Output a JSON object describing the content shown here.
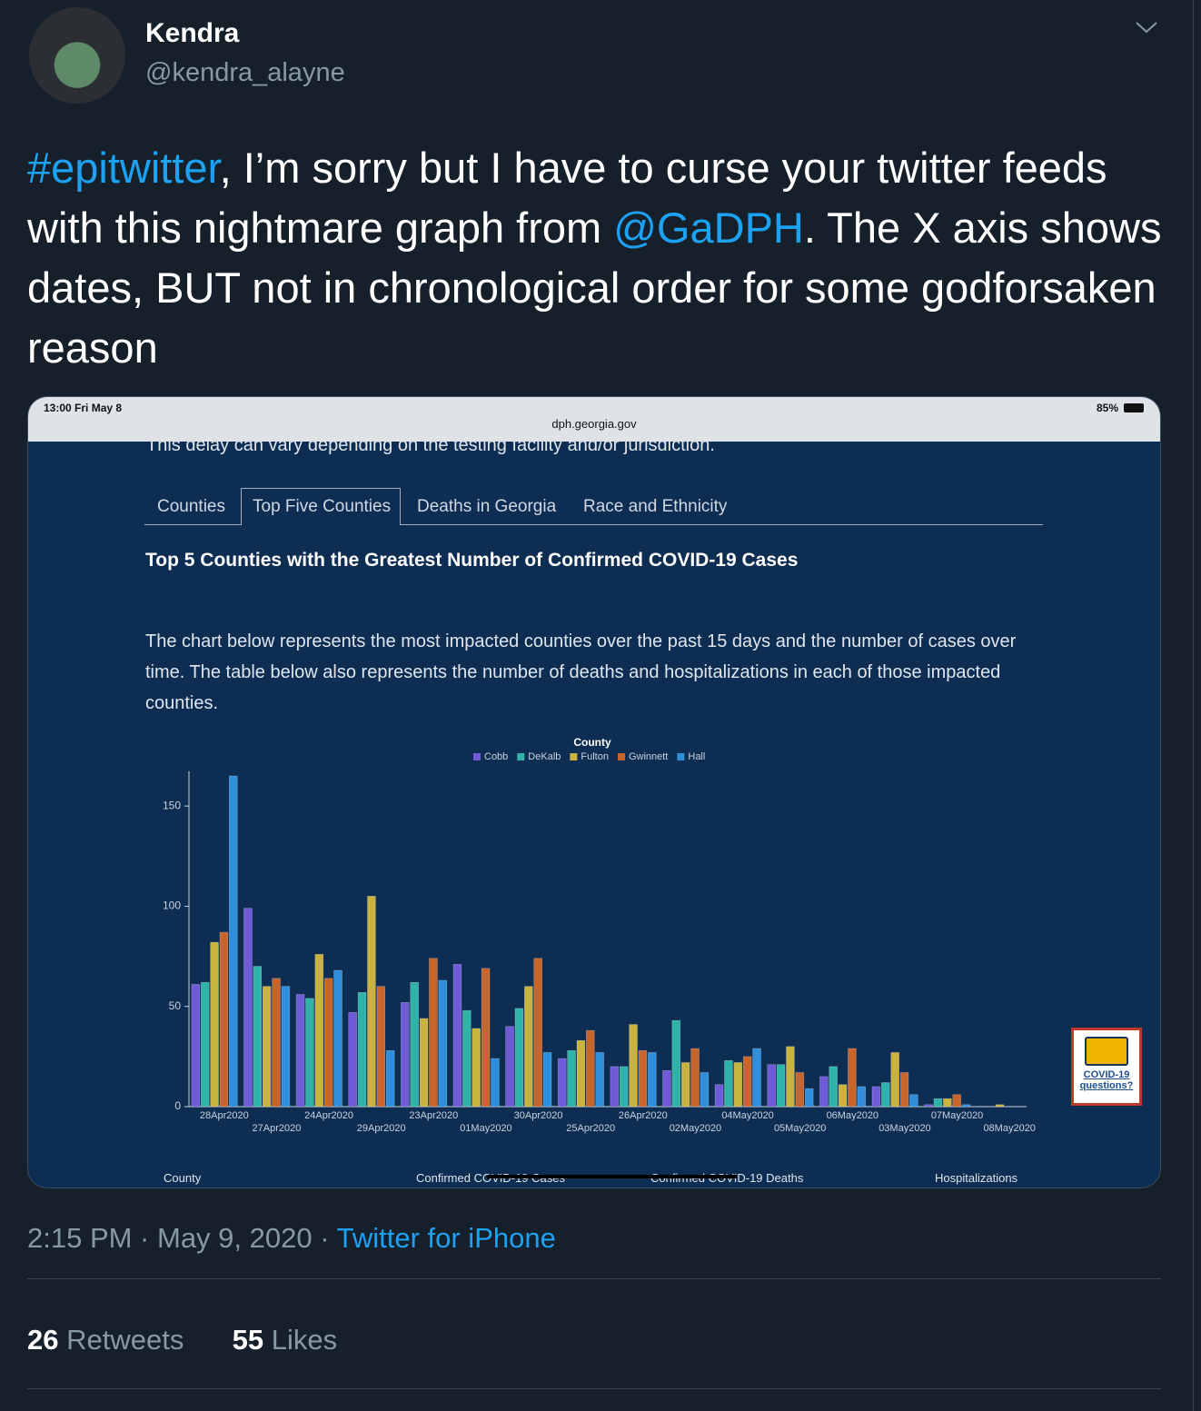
{
  "tweet": {
    "author_name": "Kendra",
    "author_handle": "@kendra_alayne",
    "body": [
      "#epitwitter",
      ", I’m sorry but I have to curse your twitter feeds with this nightmare graph from ",
      "@GaDPH",
      ". The X axis shows dates, BUT not in chronological order for some godforsaken reason"
    ],
    "meta": "2:15 PM · May 9, 2020 ·",
    "source": "Twitter for iPhone",
    "retweets": "26",
    "retweets_label": "Retweets",
    "likes": "55",
    "likes_label": "Likes"
  },
  "screenshot": {
    "status_time": "13:00   Fri May 8",
    "battery": "85%",
    "url": "dph.georgia.gov",
    "clipped_text": "This delay can vary depending on the testing facility and/or jurisdiction.",
    "tabs": [
      "Counties",
      "Top Five Counties",
      "Deaths in Georgia",
      "Race and Ethnicity"
    ],
    "heading": "Top 5 Counties with the Greatest Number of Confirmed COVID-19 Cases",
    "paragraph": "The chart below represents the most impacted counties over the past 15 days and the number of cases over time. The table below also represents the number of deaths and hospitalizations in each of those impacted counties.",
    "table_headers": [
      "County",
      "Confirmed COVID-19 Cases",
      "Confirmed COVID-19 Deaths",
      "Hospitalizations"
    ],
    "help_button": [
      "COVID-19",
      "questions?"
    ]
  },
  "chart_data": {
    "type": "bar",
    "legend_title": "County",
    "legend": "top",
    "categories": [
      "28Apr2020",
      "27Apr2020",
      "24Apr2020",
      "29Apr2020",
      "23Apr2020",
      "01May2020",
      "30Apr2020",
      "25Apr2020",
      "26Apr2020",
      "02May2020",
      "04May2020",
      "05May2020",
      "06May2020",
      "03May2020",
      "07May2020",
      "08May2020"
    ],
    "series": [
      {
        "name": "Cobb",
        "color": "#6f5ad8",
        "values": [
          61,
          99,
          56,
          47,
          52,
          71,
          40,
          24,
          20,
          18,
          11,
          21,
          15,
          10,
          1,
          0
        ]
      },
      {
        "name": "DeKalb",
        "color": "#2fb3a9",
        "values": [
          62,
          70,
          54,
          57,
          62,
          48,
          49,
          28,
          20,
          43,
          23,
          21,
          20,
          12,
          4,
          0
        ]
      },
      {
        "name": "Fulton",
        "color": "#c9b23e",
        "values": [
          82,
          60,
          76,
          105,
          44,
          39,
          60,
          33,
          41,
          22,
          22,
          30,
          11,
          27,
          4,
          1
        ]
      },
      {
        "name": "Gwinnett",
        "color": "#c8652b",
        "values": [
          87,
          64,
          64,
          60,
          74,
          69,
          74,
          38,
          28,
          29,
          25,
          17,
          29,
          17,
          6,
          0
        ]
      },
      {
        "name": "Hall",
        "color": "#2f8fdc",
        "values": [
          165,
          60,
          68,
          28,
          63,
          24,
          27,
          27,
          27,
          17,
          29,
          9,
          10,
          6,
          1,
          0
        ]
      }
    ],
    "ylim": [
      0,
      170
    ],
    "yticks": [
      0,
      50,
      100,
      150
    ],
    "grid": false
  }
}
